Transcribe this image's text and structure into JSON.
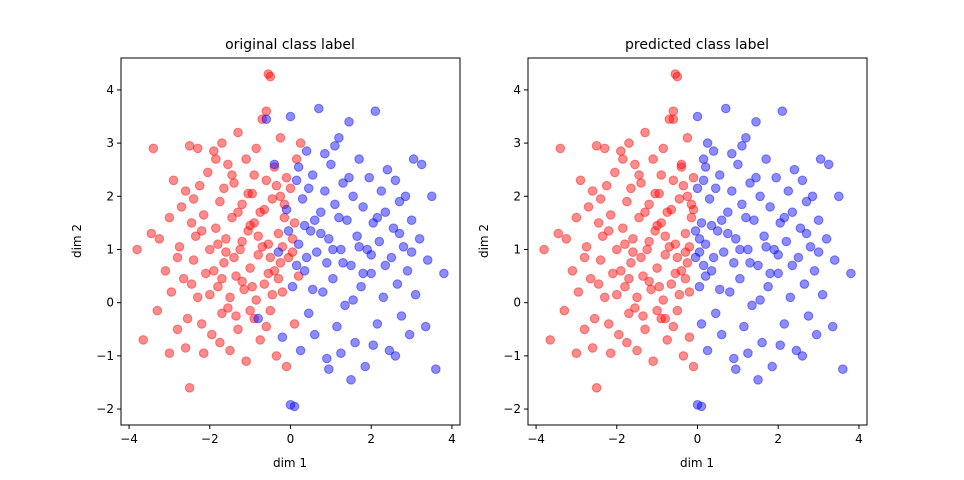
{
  "chart_data": [
    {
      "type": "scatter",
      "title": "original class label",
      "xlabel": "dim 1",
      "ylabel": "dim 2",
      "xlim": [
        -4.2,
        4.2
      ],
      "ylim": [
        -2.3,
        4.6
      ],
      "xticks": [
        "−4",
        "−2",
        "0",
        "2",
        "4"
      ],
      "yticks": [
        "−2",
        "−1",
        "0",
        "1",
        "2",
        "3",
        "4"
      ],
      "grid": false,
      "marker_alpha": 0.45,
      "series": [
        {
          "color": "#ff0000",
          "points": [
            [
              -3.8,
              1.0
            ],
            [
              -3.65,
              -0.7
            ],
            [
              -3.45,
              1.3
            ],
            [
              -3.4,
              2.9
            ],
            [
              -3.3,
              -0.15
            ],
            [
              -3.25,
              1.2
            ],
            [
              -3.1,
              0.6
            ],
            [
              -3.0,
              -0.95
            ],
            [
              -2.95,
              0.2
            ],
            [
              -2.9,
              2.3
            ],
            [
              -2.8,
              -0.5
            ],
            [
              -2.75,
              1.05
            ],
            [
              -2.7,
              1.8
            ],
            [
              -2.65,
              0.45
            ],
            [
              -2.6,
              2.1
            ],
            [
              -2.55,
              -0.3
            ],
            [
              -2.5,
              2.95
            ],
            [
              -2.5,
              -1.6
            ],
            [
              -2.45,
              1.5
            ],
            [
              -2.4,
              0.8
            ],
            [
              -2.35,
              1.25
            ],
            [
              -2.3,
              0.1
            ],
            [
              -2.25,
              2.2
            ],
            [
              -2.2,
              -0.4
            ],
            [
              -2.15,
              1.65
            ],
            [
              -2.1,
              0.55
            ],
            [
              -2.05,
              2.45
            ],
            [
              -2.0,
              1.0
            ],
            [
              -1.95,
              -0.6
            ],
            [
              -1.9,
              2.85
            ],
            [
              -1.85,
              1.4
            ],
            [
              -1.8,
              0.3
            ],
            [
              -1.75,
              1.9
            ],
            [
              -1.7,
              -0.2
            ],
            [
              -1.7,
              3.0
            ],
            [
              -1.65,
              0.75
            ],
            [
              -1.6,
              1.2
            ],
            [
              -1.55,
              2.6
            ],
            [
              -1.5,
              -0.9
            ],
            [
              -1.5,
              0.1
            ],
            [
              -1.45,
              1.6
            ],
            [
              -1.4,
              2.25
            ],
            [
              -1.35,
              0.5
            ],
            [
              -1.3,
              3.2
            ],
            [
              -1.3,
              -0.5
            ],
            [
              -1.25,
              1.0
            ],
            [
              -1.2,
              1.85
            ],
            [
              -1.15,
              0.25
            ],
            [
              -1.1,
              2.7
            ],
            [
              -1.1,
              -1.1
            ],
            [
              -1.05,
              1.35
            ],
            [
              -1.0,
              0.65
            ],
            [
              -0.95,
              2.05
            ],
            [
              -0.9,
              -0.3
            ],
            [
              -0.9,
              1.5
            ],
            [
              -0.85,
              2.9
            ],
            [
              -0.8,
              0.9
            ],
            [
              -0.75,
              1.7
            ],
            [
              -0.75,
              -0.7
            ],
            [
              -0.7,
              3.45
            ],
            [
              -0.65,
              0.35
            ],
            [
              -0.6,
              2.3
            ],
            [
              -0.6,
              3.6
            ],
            [
              -0.55,
              1.1
            ],
            [
              -0.55,
              4.3
            ],
            [
              -0.5,
              4.25
            ],
            [
              -0.5,
              -0.15
            ],
            [
              -0.45,
              1.95
            ],
            [
              -0.4,
              2.55
            ],
            [
              -0.4,
              0.6
            ],
            [
              -0.35,
              -1.0
            ],
            [
              -0.3,
              1.3
            ],
            [
              -0.25,
              3.1
            ],
            [
              -0.25,
              2.0
            ],
            [
              -0.2,
              0.2
            ],
            [
              -0.15,
              1.6
            ],
            [
              -0.1,
              2.35
            ],
            [
              -0.1,
              -1.2
            ],
            [
              -0.05,
              0.85
            ],
            [
              0.0,
              2.15
            ],
            [
              0.05,
              1.2
            ],
            [
              0.1,
              -0.4
            ],
            [
              0.15,
              2.7
            ],
            [
              0.2,
              0.5
            ],
            [
              0.25,
              3.0
            ],
            [
              -1.6,
              0.95
            ],
            [
              -1.2,
              1.15
            ],
            [
              -0.8,
              1.25
            ],
            [
              -1.4,
              0.85
            ],
            [
              -1.0,
              1.45
            ],
            [
              -0.7,
              1.05
            ],
            [
              -1.8,
              1.1
            ],
            [
              -1.3,
              1.7
            ],
            [
              -0.5,
              0.85
            ],
            [
              -2.2,
              1.35
            ],
            [
              -1.9,
              0.6
            ],
            [
              -0.3,
              0.45
            ],
            [
              -0.6,
              -0.45
            ],
            [
              -1.0,
              -0.15
            ],
            [
              -1.55,
              -0.1
            ],
            [
              -2.0,
              0.15
            ],
            [
              -0.15,
              1.85
            ],
            [
              -0.35,
              2.2
            ],
            [
              -0.9,
              2.4
            ],
            [
              -1.65,
              2.15
            ],
            [
              -2.4,
              1.95
            ],
            [
              -2.8,
              0.85
            ],
            [
              -3.0,
              1.6
            ],
            [
              -2.6,
              -0.85
            ],
            [
              -2.15,
              -0.95
            ],
            [
              -1.75,
              -0.75
            ],
            [
              -1.35,
              -0.25
            ],
            [
              -0.85,
              0.05
            ],
            [
              -0.45,
              0.15
            ],
            [
              0.05,
              0.95
            ],
            [
              0.1,
              1.5
            ],
            [
              -0.2,
              1.05
            ],
            [
              -0.65,
              1.75
            ],
            [
              -1.05,
              2.05
            ],
            [
              -1.45,
              2.4
            ],
            [
              -1.85,
              2.7
            ],
            [
              -2.3,
              2.9
            ],
            [
              -1.2,
              0.4
            ],
            [
              -1.7,
              0.45
            ],
            [
              -2.45,
              0.35
            ],
            [
              -0.95,
              0.3
            ],
            [
              -0.55,
              0.55
            ],
            [
              -0.25,
              0.75
            ]
          ]
        },
        {
          "color": "#0000ff",
          "points": [
            [
              -0.8,
              -0.3
            ],
            [
              -0.6,
              3.45
            ],
            [
              -0.4,
              2.6
            ],
            [
              -0.3,
              0.95
            ],
            [
              -0.2,
              -0.65
            ],
            [
              -0.1,
              1.75
            ],
            [
              0.0,
              3.5
            ],
            [
              0.05,
              0.3
            ],
            [
              0.1,
              -1.95
            ],
            [
              0.0,
              -1.92
            ],
            [
              0.15,
              2.3
            ],
            [
              0.2,
              1.1
            ],
            [
              0.25,
              -0.9
            ],
            [
              0.3,
              1.95
            ],
            [
              0.35,
              0.6
            ],
            [
              0.4,
              2.85
            ],
            [
              0.45,
              -0.2
            ],
            [
              0.5,
              1.35
            ],
            [
              0.55,
              2.4
            ],
            [
              0.6,
              -0.6
            ],
            [
              0.65,
              0.95
            ],
            [
              0.7,
              3.65
            ],
            [
              0.75,
              1.7
            ],
            [
              0.8,
              0.2
            ],
            [
              0.85,
              2.1
            ],
            [
              0.9,
              -1.05
            ],
            [
              0.95,
              1.2
            ],
            [
              1.0,
              2.6
            ],
            [
              1.05,
              0.45
            ],
            [
              1.1,
              1.85
            ],
            [
              1.15,
              -0.45
            ],
            [
              1.2,
              3.1
            ],
            [
              1.25,
              1.0
            ],
            [
              1.3,
              2.25
            ],
            [
              1.35,
              -0.05
            ],
            [
              1.4,
              1.55
            ],
            [
              1.45,
              3.4
            ],
            [
              1.5,
              0.7
            ],
            [
              1.55,
              2.0
            ],
            [
              1.6,
              -0.75
            ],
            [
              1.65,
              1.25
            ],
            [
              1.7,
              2.7
            ],
            [
              1.75,
              0.3
            ],
            [
              1.8,
              1.8
            ],
            [
              1.85,
              -1.2
            ],
            [
              1.9,
              1.0
            ],
            [
              1.95,
              2.35
            ],
            [
              2.0,
              0.55
            ],
            [
              2.05,
              1.5
            ],
            [
              2.1,
              3.6
            ],
            [
              2.15,
              -0.4
            ],
            [
              2.2,
              1.15
            ],
            [
              2.25,
              2.1
            ],
            [
              2.3,
              0.1
            ],
            [
              2.35,
              1.7
            ],
            [
              2.4,
              2.5
            ],
            [
              2.45,
              -0.9
            ],
            [
              2.5,
              0.85
            ],
            [
              2.55,
              1.4
            ],
            [
              2.6,
              2.3
            ],
            [
              2.65,
              0.35
            ],
            [
              2.7,
              1.9
            ],
            [
              2.75,
              -0.25
            ],
            [
              2.8,
              1.05
            ],
            [
              2.85,
              2.0
            ],
            [
              2.9,
              0.6
            ],
            [
              2.95,
              -0.6
            ],
            [
              3.0,
              1.55
            ],
            [
              3.05,
              2.7
            ],
            [
              3.1,
              0.15
            ],
            [
              3.2,
              1.2
            ],
            [
              3.25,
              2.6
            ],
            [
              3.35,
              -0.45
            ],
            [
              3.4,
              0.8
            ],
            [
              3.5,
              2.0
            ],
            [
              3.6,
              -1.25
            ],
            [
              3.8,
              0.55
            ],
            [
              1.5,
              -1.45
            ],
            [
              0.95,
              -1.25
            ],
            [
              1.25,
              -0.95
            ],
            [
              2.05,
              -0.8
            ],
            [
              2.6,
              -1.0
            ],
            [
              0.4,
              0.85
            ],
            [
              0.75,
              1.3
            ],
            [
              1.05,
              1.0
            ],
            [
              1.3,
              0.75
            ],
            [
              1.7,
              1.05
            ],
            [
              2.0,
              0.9
            ],
            [
              0.6,
              1.55
            ],
            [
              0.9,
              0.75
            ],
            [
              1.2,
              1.6
            ],
            [
              0.35,
              1.45
            ],
            [
              0.55,
              0.25
            ],
            [
              1.8,
              0.55
            ],
            [
              2.35,
              0.7
            ],
            [
              1.45,
              2.35
            ],
            [
              0.85,
              2.8
            ],
            [
              1.1,
              2.95
            ],
            [
              0.2,
              2.55
            ],
            [
              0.45,
              2.15
            ],
            [
              -0.05,
              1.35
            ],
            [
              0.15,
              0.7
            ],
            [
              1.55,
              0.05
            ],
            [
              2.15,
              1.6
            ],
            [
              2.7,
              1.3
            ],
            [
              3.0,
              0.95
            ]
          ]
        }
      ]
    },
    {
      "type": "scatter",
      "title": "predicted class label",
      "xlabel": "dim 1",
      "ylabel": "dim 2",
      "xlim": [
        -4.2,
        4.2
      ],
      "ylim": [
        -2.3,
        4.6
      ],
      "xticks": [
        "−4",
        "−2",
        "0",
        "2",
        "4"
      ],
      "yticks": [
        "−2",
        "−1",
        "0",
        "1",
        "2",
        "3",
        "4"
      ],
      "grid": false,
      "marker_alpha": 0.45,
      "decision_boundary_x": -0.05,
      "colors": [
        "#ff0000",
        "#0000ff"
      ]
    }
  ]
}
